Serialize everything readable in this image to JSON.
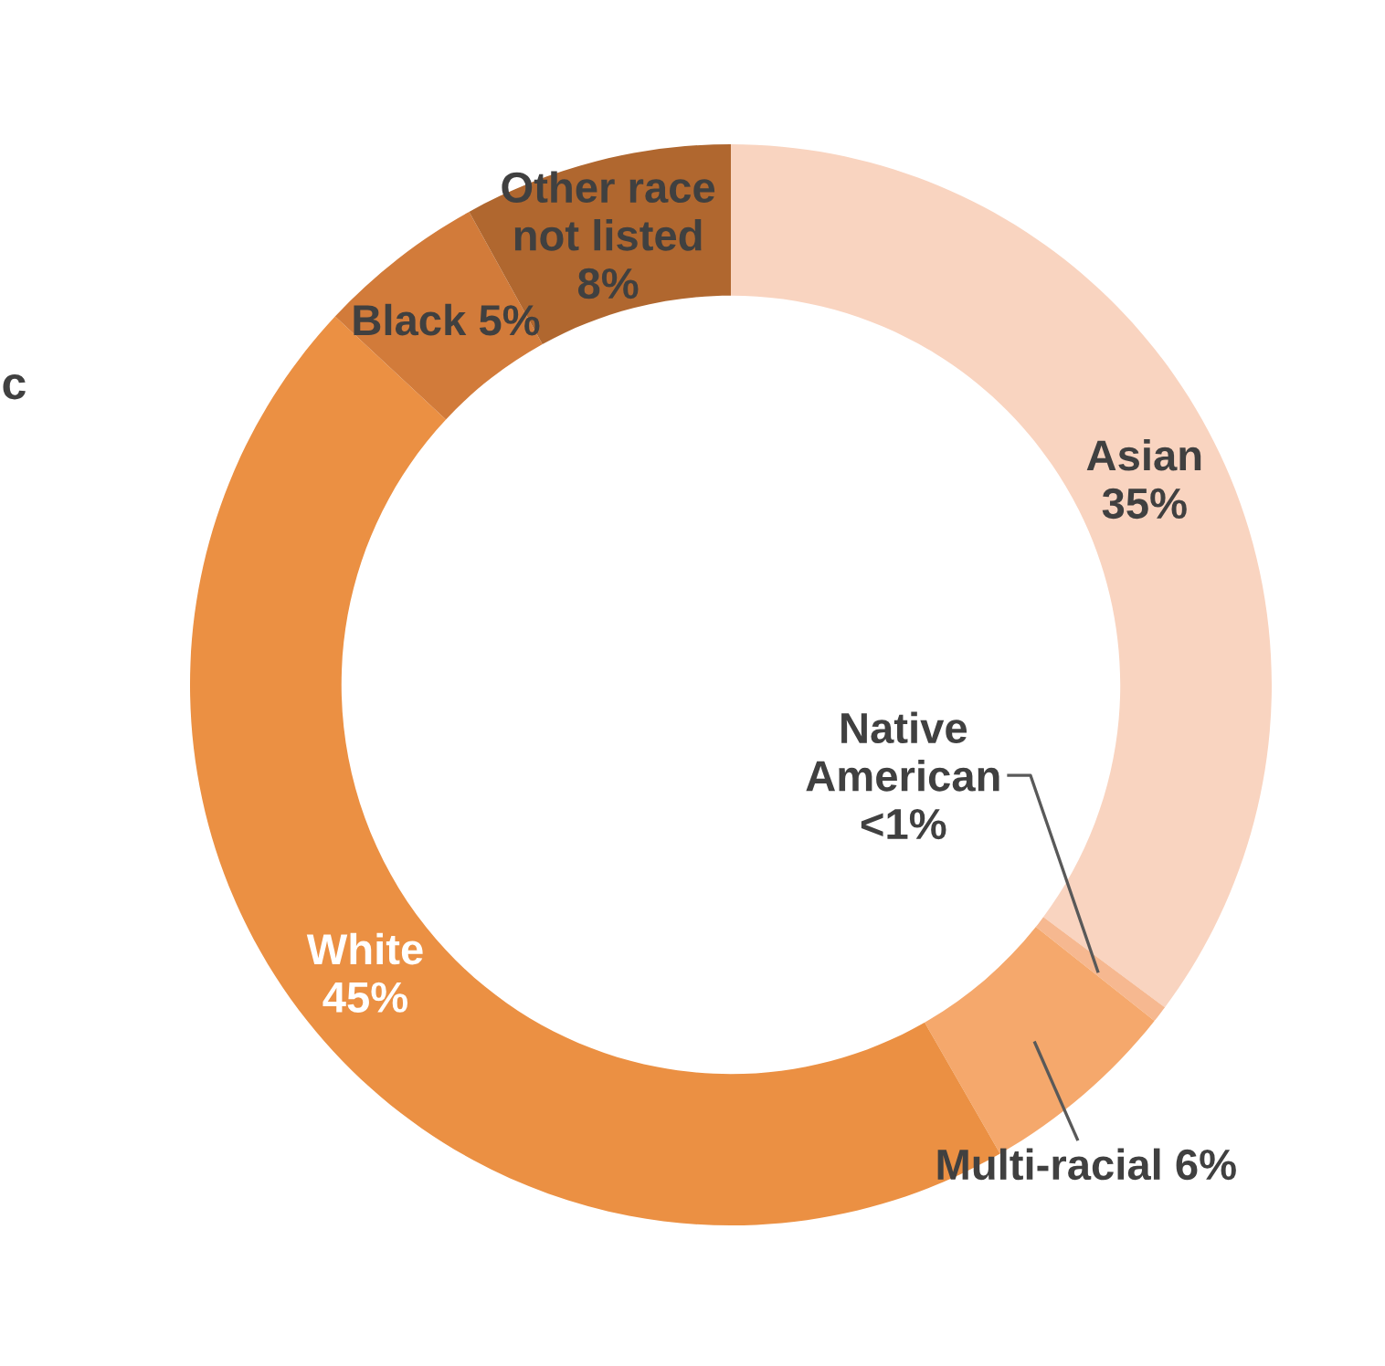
{
  "chart_data": {
    "type": "donut",
    "categories": [
      "Asian",
      "Native American",
      "Multi-racial",
      "White",
      "Black",
      "Other race not listed"
    ],
    "values": [
      35,
      0.5,
      6,
      45,
      5,
      8
    ],
    "value_labels": [
      "35%",
      "<1%",
      "6%",
      "45%",
      "5%",
      "8%"
    ],
    "colors": [
      "#f9d4c0",
      "#f6b890",
      "#f5a86c",
      "#eb9043",
      "#d27b3a",
      "#b0672f"
    ],
    "annotations": [
      "c"
    ],
    "legend": false
  }
}
